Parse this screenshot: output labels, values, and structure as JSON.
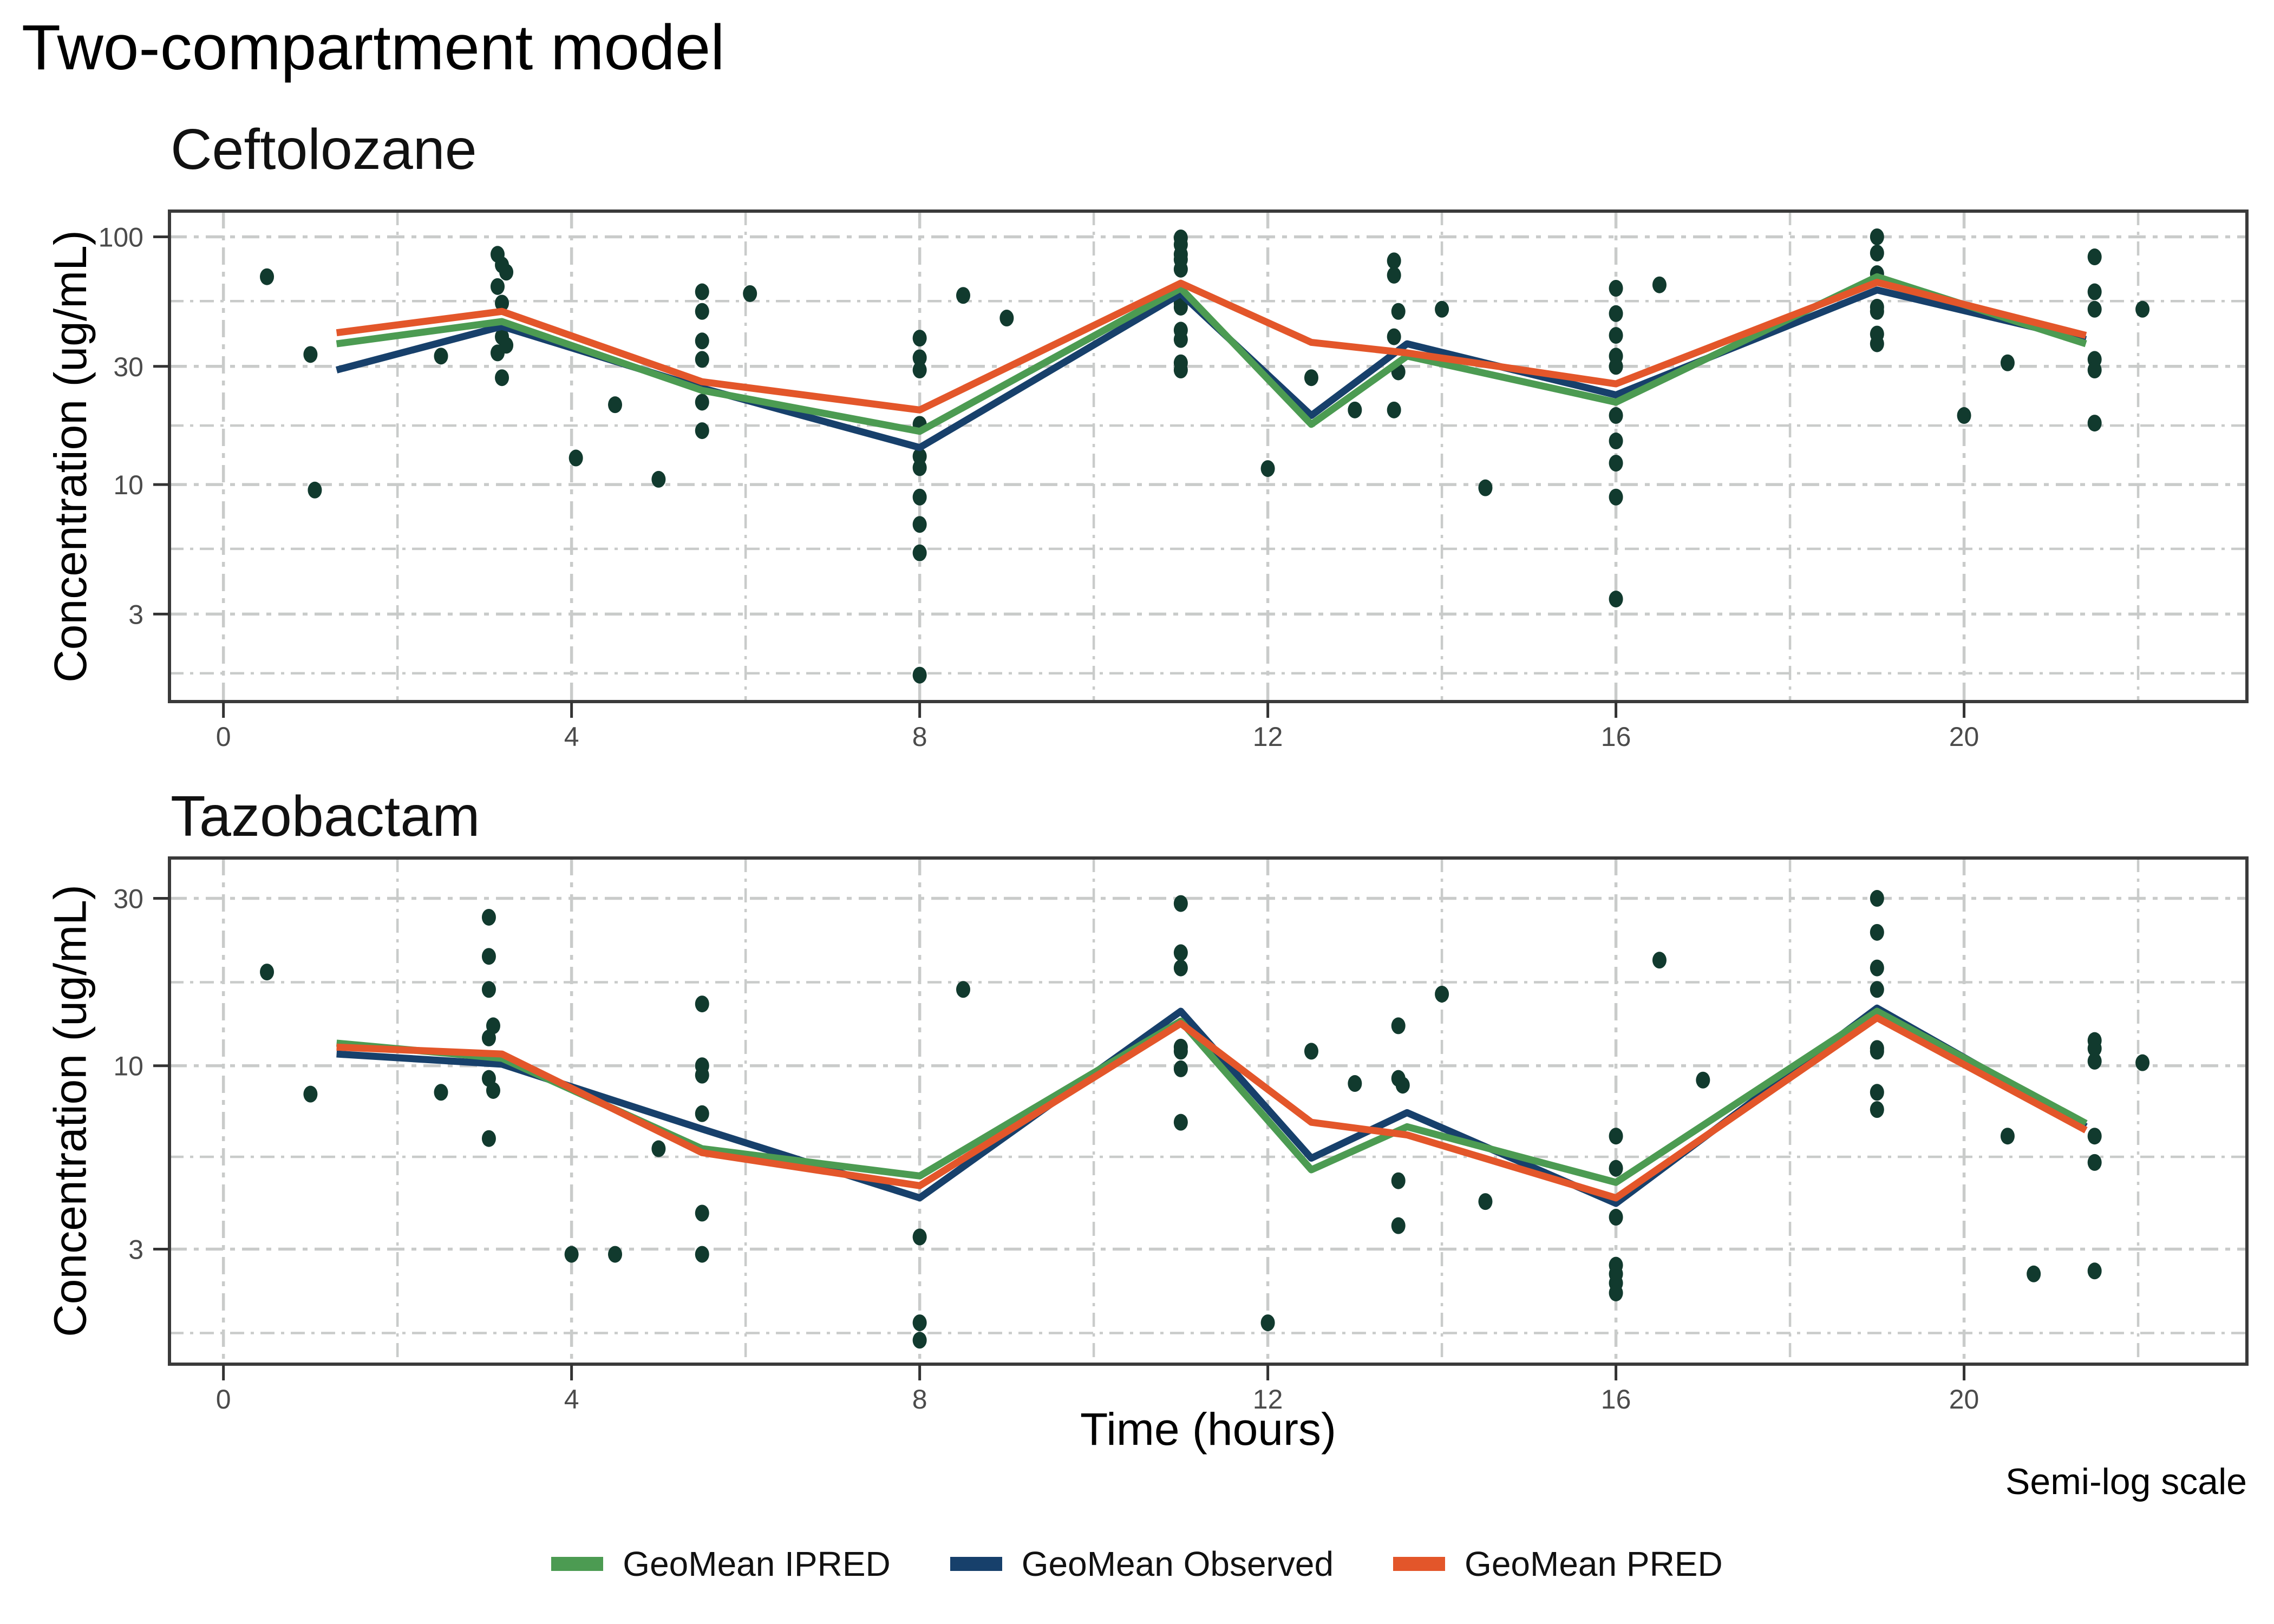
{
  "title": "Two-compartment model",
  "x_label": "Time (hours)",
  "caption": "Semi-log scale",
  "colors": {
    "point": "#113A2E",
    "grid": "#C9CBCA",
    "axis_text": "#4B4B4B",
    "panel_border": "#3A3A3A",
    "tick": "#333333"
  },
  "legend": [
    {
      "label": "GeoMean IPRED",
      "color": "#4C9B52"
    },
    {
      "label": "GeoMean Observed",
      "color": "#17406B"
    },
    {
      "label": "GeoMean PRED",
      "color": "#E3562A"
    }
  ],
  "chart_data": [
    {
      "type": "line+scatter",
      "title": "Ceftolozane",
      "ylabel": "Concentration (ug/mL)",
      "xlabel": "Time (hours)",
      "scale": "semilog-y",
      "xlim": [
        -0.62,
        23.25
      ],
      "ylim": [
        1.33,
        127
      ],
      "xticks": [
        0,
        4,
        8,
        12,
        16,
        20
      ],
      "xminor": [
        2,
        6,
        10,
        14,
        18,
        22
      ],
      "yticks": [
        100,
        30,
        10,
        3
      ],
      "yminor": [
        55,
        17.3,
        5.5,
        1.73
      ],
      "x": [
        1.3,
        3.2,
        5.5,
        8,
        11,
        12.5,
        13.6,
        16,
        19,
        21.4
      ],
      "series": [
        {
          "name": "GeoMean Observed",
          "color": "#17406B",
          "values": [
            29,
            43.5,
            24.5,
            14.1,
            59,
            19,
            37,
            23,
            61,
            38.5
          ]
        },
        {
          "name": "GeoMean IPRED",
          "color": "#4C9B52",
          "values": [
            37,
            45.5,
            24,
            16.4,
            62,
            17.5,
            33,
            21.5,
            69,
            37
          ]
        },
        {
          "name": "GeoMean PRED",
          "color": "#E3562A",
          "values": [
            41,
            50,
            26,
            20,
            65,
            37.5,
            34,
            25.5,
            65.5,
            40
          ]
        }
      ],
      "points": [
        [
          0.5,
          69
        ],
        [
          1.0,
          33.5
        ],
        [
          1.05,
          9.5
        ],
        [
          2.5,
          33
        ],
        [
          3.15,
          85
        ],
        [
          3.2,
          77
        ],
        [
          3.25,
          72
        ],
        [
          3.15,
          63
        ],
        [
          3.2,
          54
        ],
        [
          3.2,
          39.5
        ],
        [
          3.25,
          36.5
        ],
        [
          3.15,
          34
        ],
        [
          3.2,
          27
        ],
        [
          4.05,
          12.8
        ],
        [
          4.5,
          21
        ],
        [
          5.0,
          10.5
        ],
        [
          5.5,
          60
        ],
        [
          5.5,
          50
        ],
        [
          5.5,
          38
        ],
        [
          5.5,
          32
        ],
        [
          5.5,
          21.5
        ],
        [
          5.5,
          16.5
        ],
        [
          6.05,
          59
        ],
        [
          8,
          39
        ],
        [
          8,
          32.5
        ],
        [
          8,
          29
        ],
        [
          8,
          17.5
        ],
        [
          8,
          13
        ],
        [
          8,
          11.7
        ],
        [
          8,
          8.9
        ],
        [
          8,
          6.9
        ],
        [
          8,
          5.3
        ],
        [
          8,
          1.7
        ],
        [
          8.5,
          58
        ],
        [
          9.0,
          47
        ],
        [
          11,
          99
        ],
        [
          11,
          93
        ],
        [
          11,
          85
        ],
        [
          11,
          81
        ],
        [
          11,
          74
        ],
        [
          11,
          54
        ],
        [
          11,
          52
        ],
        [
          11,
          42
        ],
        [
          11,
          38.5
        ],
        [
          11,
          31
        ],
        [
          11,
          29
        ],
        [
          12.0,
          11.6
        ],
        [
          12.5,
          27
        ],
        [
          13.0,
          20
        ],
        [
          13.45,
          80
        ],
        [
          13.45,
          70
        ],
        [
          13.5,
          50
        ],
        [
          13.45,
          39.5
        ],
        [
          13.5,
          28.5
        ],
        [
          13.45,
          20
        ],
        [
          14.0,
          51
        ],
        [
          14.5,
          9.7
        ],
        [
          16,
          62
        ],
        [
          16,
          49
        ],
        [
          16,
          40
        ],
        [
          16,
          33
        ],
        [
          16,
          30
        ],
        [
          16,
          19
        ],
        [
          16,
          15
        ],
        [
          16,
          12.2
        ],
        [
          16,
          8.9
        ],
        [
          16,
          3.45
        ],
        [
          16.5,
          64
        ],
        [
          19,
          100
        ],
        [
          19,
          86
        ],
        [
          19,
          71
        ],
        [
          19,
          52
        ],
        [
          19,
          50
        ],
        [
          19,
          40.5
        ],
        [
          19,
          37
        ],
        [
          20.0,
          19
        ],
        [
          20.5,
          31
        ],
        [
          21.5,
          83
        ],
        [
          21.5,
          60
        ],
        [
          21.5,
          51
        ],
        [
          21.5,
          32
        ],
        [
          21.5,
          29
        ],
        [
          21.5,
          17.7
        ],
        [
          22.05,
          51
        ]
      ]
    },
    {
      "type": "line+scatter",
      "title": "Tazobactam",
      "ylabel": "Concentration (ug/mL)",
      "xlabel": "Time (hours)",
      "scale": "semilog-y",
      "xlim": [
        -0.62,
        23.25
      ],
      "ylim": [
        1.41,
        39.1
      ],
      "xticks": [
        0,
        4,
        8,
        12,
        16,
        20
      ],
      "xminor": [
        2,
        6,
        10,
        14,
        18,
        22
      ],
      "yticks": [
        30,
        10,
        3
      ],
      "yminor": [
        17.3,
        5.5,
        1.73
      ],
      "x": [
        1.3,
        3.2,
        5.5,
        8,
        11,
        12.5,
        13.6,
        16,
        19,
        21.4
      ],
      "series": [
        {
          "name": "GeoMean Observed",
          "color": "#17406B",
          "values": [
            10.8,
            10.1,
            6.6,
            4.2,
            14.3,
            5.45,
            7.35,
            4.05,
            14.6,
            6.7
          ]
        },
        {
          "name": "GeoMean IPRED",
          "color": "#4C9B52",
          "values": [
            11.6,
            10.5,
            5.8,
            4.85,
            13.4,
            5.05,
            6.7,
            4.65,
            14.3,
            6.85
          ]
        },
        {
          "name": "GeoMean PRED",
          "color": "#E3562A",
          "values": [
            11.3,
            10.8,
            5.65,
            4.55,
            13.2,
            6.9,
            6.35,
            4.2,
            13.7,
            6.55
          ]
        }
      ],
      "points": [
        [
          0.5,
          18.5
        ],
        [
          1.0,
          8.3
        ],
        [
          2.5,
          8.4
        ],
        [
          3.05,
          26.5
        ],
        [
          3.05,
          20.5
        ],
        [
          3.05,
          16.5
        ],
        [
          3.1,
          13
        ],
        [
          3.05,
          12
        ],
        [
          3.05,
          9.2
        ],
        [
          3.1,
          8.5
        ],
        [
          3.05,
          6.2
        ],
        [
          4.0,
          2.9
        ],
        [
          4.5,
          2.9
        ],
        [
          5.0,
          5.8
        ],
        [
          5.5,
          15
        ],
        [
          5.5,
          10
        ],
        [
          5.5,
          9.4
        ],
        [
          5.5,
          7.3
        ],
        [
          5.5,
          3.8
        ],
        [
          5.5,
          2.9
        ],
        [
          8,
          3.25
        ],
        [
          8,
          1.85
        ],
        [
          8,
          1.65
        ],
        [
          8.5,
          16.5
        ],
        [
          11,
          29
        ],
        [
          11,
          21
        ],
        [
          11,
          19
        ],
        [
          11,
          11.3
        ],
        [
          11,
          11
        ],
        [
          11,
          9.8
        ],
        [
          11,
          6.9
        ],
        [
          12.0,
          1.85
        ],
        [
          12.5,
          11
        ],
        [
          13.0,
          8.9
        ],
        [
          13.5,
          13
        ],
        [
          13.5,
          9.2
        ],
        [
          13.55,
          8.8
        ],
        [
          13.5,
          4.7
        ],
        [
          13.5,
          3.5
        ],
        [
          14.0,
          16
        ],
        [
          14.5,
          4.1
        ],
        [
          16,
          6.3
        ],
        [
          16,
          5.1
        ],
        [
          16,
          3.7
        ],
        [
          16,
          2.7
        ],
        [
          16,
          2.55
        ],
        [
          16,
          2.4
        ],
        [
          16,
          2.25
        ],
        [
          16.5,
          20
        ],
        [
          17.0,
          9.1
        ],
        [
          19,
          30
        ],
        [
          19,
          24
        ],
        [
          19,
          19
        ],
        [
          19,
          16.5
        ],
        [
          19,
          11.2
        ],
        [
          19,
          11
        ],
        [
          19,
          8.4
        ],
        [
          19,
          7.5
        ],
        [
          20.5,
          6.3
        ],
        [
          20.8,
          2.55
        ],
        [
          21.5,
          11.8
        ],
        [
          21.5,
          11.2
        ],
        [
          21.5,
          10.3
        ],
        [
          21.5,
          6.3
        ],
        [
          21.5,
          5.3
        ],
        [
          21.5,
          2.6
        ],
        [
          22.05,
          10.2
        ]
      ]
    }
  ]
}
